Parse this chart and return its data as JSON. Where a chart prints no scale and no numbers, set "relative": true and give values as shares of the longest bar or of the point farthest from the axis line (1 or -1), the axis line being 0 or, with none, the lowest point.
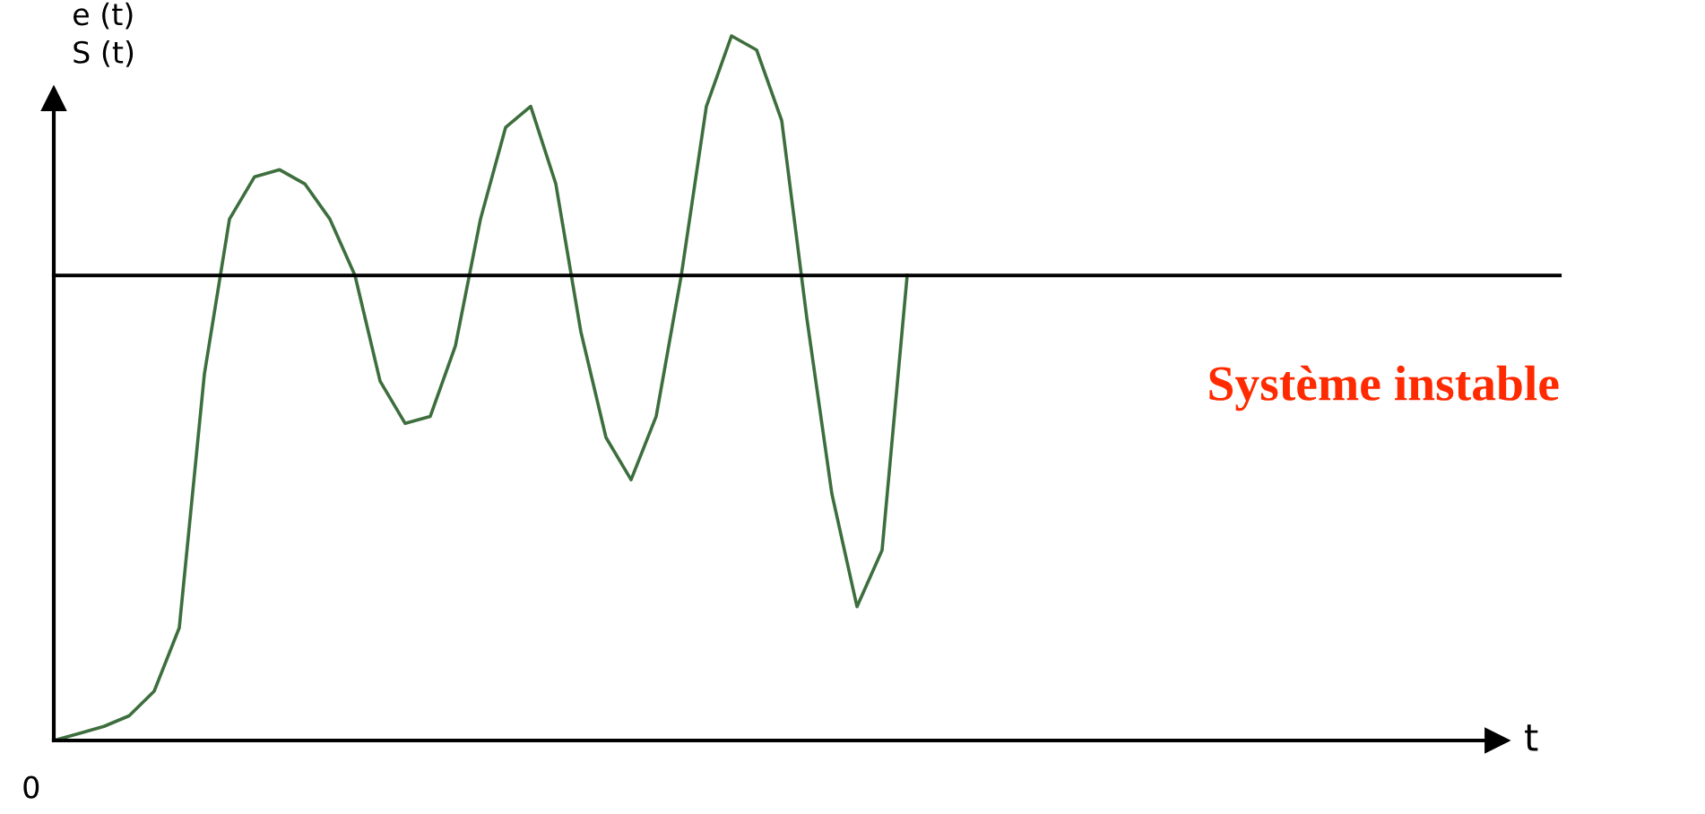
{
  "chart_data": {
    "type": "line",
    "relative": true,
    "ylabel": "e (t)\nS (t)",
    "categories": [
      null,
      null,
      null,
      null,
      null,
      null,
      null,
      null,
      null,
      null,
      null,
      null,
      null,
      null,
      null,
      null,
      null,
      null,
      null,
      null,
      null,
      null,
      null,
      null,
      null,
      null,
      null,
      null,
      null,
      null,
      null,
      null,
      null,
      null,
      null
    ],
    "values": [
      0,
      0.01,
      0.02,
      0.035,
      0.07,
      0.16,
      0.52,
      0.74,
      0.8,
      0.81,
      0.79,
      0.74,
      0.66,
      0.51,
      0.45,
      0.46,
      0.56,
      0.74,
      0.87,
      0.9,
      0.79,
      0.58,
      0.43,
      0.37,
      0.46,
      0.66,
      0.9,
      1,
      0.98,
      0.88,
      0.6,
      0.35,
      0.19,
      0.27,
      0.66
    ],
    "color": "#3d6e3d",
    "ref_lines": [
      {
        "axis": "y",
        "value": 0.66,
        "color": "#000000"
      }
    ],
    "annotations": [
      "Système instable",
      "0",
      "t"
    ]
  }
}
